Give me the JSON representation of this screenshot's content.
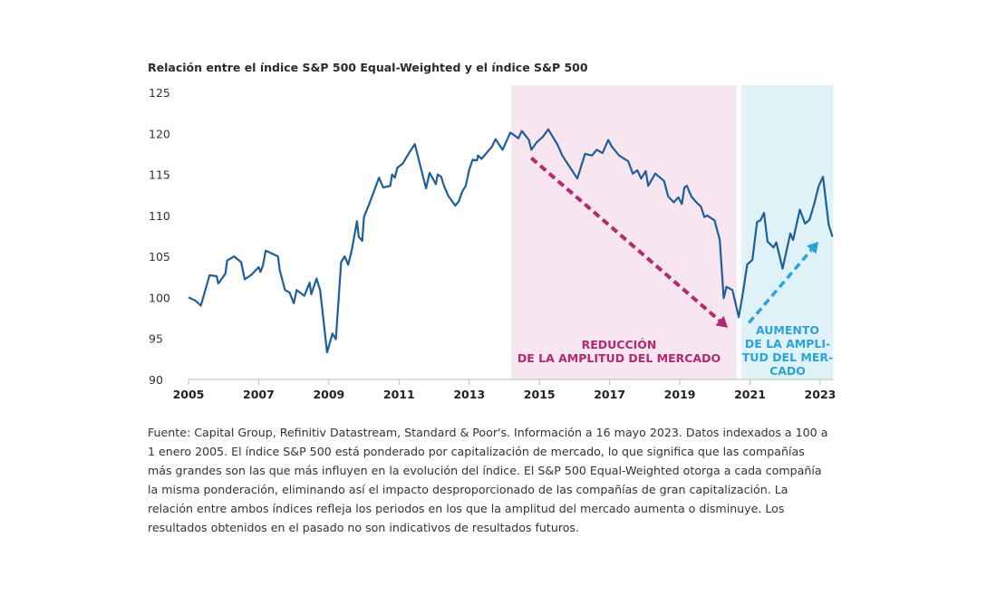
{
  "chart_data": {
    "type": "line",
    "title": "Relación entre el índice S&P 500 Equal-Weighted y el índice S&P 500",
    "xlabel": "",
    "ylabel": "",
    "xlim": [
      2005,
      2023.37
    ],
    "ylim": [
      90,
      125
    ],
    "yticks": [
      "90",
      "95",
      "100",
      "105",
      "110",
      "115",
      "120",
      "125"
    ],
    "xticks": [
      "2005",
      "2007",
      "2009",
      "2011",
      "2013",
      "2015",
      "2017",
      "2019",
      "2021",
      "2023"
    ],
    "grid": false,
    "colors": {
      "line": "#1f5f99",
      "decline_shade": "#f7e6ef",
      "decline_accent": "#b3286f",
      "rise_shade": "#dff2f8",
      "rise_accent": "#2aa3dd"
    },
    "series": [
      {
        "name": "S&P 500 Equal-Weighted / S&P 500",
        "points": [
          [
            2005.0,
            100.0
          ],
          [
            2005.2,
            99.6
          ],
          [
            2005.35,
            99.0
          ],
          [
            2005.6,
            102.7
          ],
          [
            2005.8,
            102.6
          ],
          [
            2005.85,
            101.7
          ],
          [
            2006.05,
            102.9
          ],
          [
            2006.1,
            104.5
          ],
          [
            2006.3,
            105.0
          ],
          [
            2006.5,
            104.3
          ],
          [
            2006.6,
            102.2
          ],
          [
            2006.8,
            102.8
          ],
          [
            2007.0,
            103.7
          ],
          [
            2007.05,
            103.1
          ],
          [
            2007.12,
            103.9
          ],
          [
            2007.2,
            105.7
          ],
          [
            2007.55,
            105.0
          ],
          [
            2007.6,
            103.3
          ],
          [
            2007.75,
            100.9
          ],
          [
            2007.88,
            100.6
          ],
          [
            2008.0,
            99.3
          ],
          [
            2008.08,
            100.9
          ],
          [
            2008.3,
            100.2
          ],
          [
            2008.45,
            101.8
          ],
          [
            2008.5,
            100.4
          ],
          [
            2008.65,
            102.3
          ],
          [
            2008.75,
            100.9
          ],
          [
            2008.95,
            93.3
          ],
          [
            2009.1,
            95.6
          ],
          [
            2009.2,
            94.9
          ],
          [
            2009.35,
            104.3
          ],
          [
            2009.45,
            105.0
          ],
          [
            2009.55,
            104.0
          ],
          [
            2009.65,
            105.7
          ],
          [
            2009.8,
            109.3
          ],
          [
            2009.85,
            107.4
          ],
          [
            2009.95,
            106.9
          ],
          [
            2010.0,
            109.8
          ],
          [
            2010.15,
            111.4
          ],
          [
            2010.43,
            114.6
          ],
          [
            2010.55,
            113.4
          ],
          [
            2010.75,
            113.6
          ],
          [
            2010.8,
            115.0
          ],
          [
            2010.88,
            114.6
          ],
          [
            2010.95,
            115.8
          ],
          [
            2011.1,
            116.3
          ],
          [
            2011.3,
            117.7
          ],
          [
            2011.45,
            118.7
          ],
          [
            2011.77,
            113.3
          ],
          [
            2011.87,
            115.2
          ],
          [
            2012.05,
            113.8
          ],
          [
            2012.1,
            115.0
          ],
          [
            2012.2,
            114.7
          ],
          [
            2012.28,
            113.6
          ],
          [
            2012.4,
            112.4
          ],
          [
            2012.6,
            111.2
          ],
          [
            2012.7,
            111.7
          ],
          [
            2012.8,
            112.9
          ],
          [
            2012.9,
            113.6
          ],
          [
            2013.0,
            115.6
          ],
          [
            2013.1,
            116.8
          ],
          [
            2013.22,
            116.7
          ],
          [
            2013.25,
            117.3
          ],
          [
            2013.35,
            116.9
          ],
          [
            2013.65,
            118.4
          ],
          [
            2013.75,
            119.3
          ],
          [
            2013.95,
            118.0
          ],
          [
            2014.17,
            120.1
          ],
          [
            2014.4,
            119.4
          ],
          [
            2014.5,
            120.3
          ],
          [
            2014.7,
            119.2
          ],
          [
            2014.77,
            118.0
          ],
          [
            2014.92,
            118.9
          ],
          [
            2015.1,
            119.6
          ],
          [
            2015.25,
            120.5
          ],
          [
            2015.52,
            118.6
          ],
          [
            2015.65,
            117.3
          ],
          [
            2015.85,
            116.0
          ],
          [
            2016.08,
            114.5
          ],
          [
            2016.3,
            117.5
          ],
          [
            2016.5,
            117.3
          ],
          [
            2016.63,
            118.0
          ],
          [
            2016.8,
            117.6
          ],
          [
            2016.96,
            119.2
          ],
          [
            2017.06,
            118.4
          ],
          [
            2017.27,
            117.3
          ],
          [
            2017.53,
            116.6
          ],
          [
            2017.66,
            115.1
          ],
          [
            2017.79,
            115.5
          ],
          [
            2017.9,
            114.5
          ],
          [
            2018.03,
            115.4
          ],
          [
            2018.1,
            113.6
          ],
          [
            2018.3,
            115.1
          ],
          [
            2018.55,
            114.2
          ],
          [
            2018.67,
            112.3
          ],
          [
            2018.83,
            111.6
          ],
          [
            2018.96,
            112.2
          ],
          [
            2019.06,
            111.4
          ],
          [
            2019.13,
            113.4
          ],
          [
            2019.2,
            113.6
          ],
          [
            2019.33,
            112.3
          ],
          [
            2019.47,
            111.6
          ],
          [
            2019.6,
            111.1
          ],
          [
            2019.7,
            109.8
          ],
          [
            2019.78,
            110.0
          ],
          [
            2019.99,
            109.4
          ],
          [
            2020.14,
            107.0
          ],
          [
            2020.25,
            99.9
          ],
          [
            2020.33,
            101.3
          ],
          [
            2020.5,
            100.9
          ],
          [
            2020.68,
            97.6
          ],
          [
            2020.8,
            100.6
          ],
          [
            2020.92,
            104.0
          ],
          [
            2021.07,
            104.6
          ],
          [
            2021.2,
            109.2
          ],
          [
            2021.3,
            109.4
          ],
          [
            2021.4,
            110.3
          ],
          [
            2021.5,
            106.8
          ],
          [
            2021.67,
            106.1
          ],
          [
            2021.75,
            106.7
          ],
          [
            2021.93,
            103.5
          ],
          [
            2022.15,
            107.8
          ],
          [
            2022.23,
            107.0
          ],
          [
            2022.42,
            110.7
          ],
          [
            2022.57,
            109.0
          ],
          [
            2022.7,
            109.5
          ],
          [
            2022.83,
            111.4
          ],
          [
            2022.96,
            113.6
          ],
          [
            2023.08,
            114.7
          ],
          [
            2023.24,
            108.9
          ],
          [
            2023.35,
            107.4
          ]
        ]
      }
    ],
    "shaded_regions": [
      {
        "from": 2014.2,
        "to": 2020.62,
        "label": [
          "REDUCCIÓN",
          "DE LA AMPLITUD DEL MERCADO"
        ]
      },
      {
        "from": 2020.76,
        "to": 2023.37,
        "label": [
          "AUMENTO",
          "DE LA AMPLI-",
          "TUD DEL MER-",
          "CADO"
        ]
      }
    ],
    "arrows": [
      {
        "from": [
          2014.77,
          117.0
        ],
        "to": [
          2020.37,
          96.3
        ],
        "direction": "down"
      },
      {
        "from": [
          2020.97,
          96.9
        ],
        "to": [
          2022.95,
          106.8
        ],
        "direction": "up"
      }
    ]
  },
  "footnote": [
    "Fuente: Capital Group, Refinitiv Datastream, Standard & Poor's. Información a 16 mayo 2023. Datos indexados a 100 a",
    "1 enero 2005. El índice S&P 500 está ponderado por capitalización de mercado, lo que significa que las compañías",
    "más grandes son las que más influyen en la evolución del índice. El S&P 500 Equal-Weighted otorga a cada compañía",
    "la misma ponderación, eliminando así el impacto desproporcionado de las compañías de gran capitalización. La",
    "relación entre ambos índices refleja los periodos en los que la amplitud del mercado aumenta o disminuye. Los",
    "resultados obtenidos en el pasado no son indicativos de resultados futuros."
  ]
}
